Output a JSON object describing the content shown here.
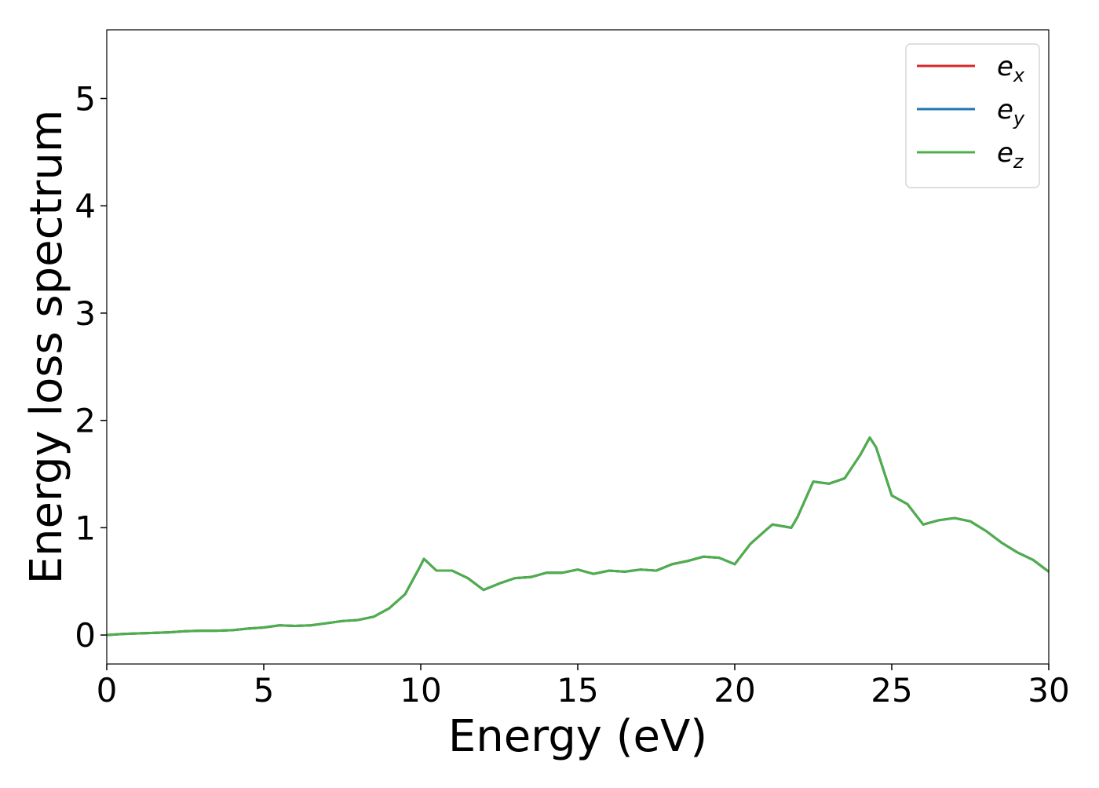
{
  "chart_data": {
    "type": "line",
    "xlabel": "Energy (eV)",
    "ylabel": "Energy loss spectrum",
    "x": [
      0,
      0.5,
      1,
      1.5,
      2,
      2.5,
      3,
      3.5,
      4,
      4.5,
      5,
      5.5,
      6,
      6.5,
      7,
      7.5,
      8,
      8.5,
      9,
      9.5,
      10,
      10.1,
      10.5,
      11,
      11.5,
      12,
      12.5,
      13,
      13.5,
      14,
      14.5,
      15,
      15.5,
      16,
      16.5,
      17,
      17.5,
      18,
      18.5,
      19,
      19.5,
      20,
      20.5,
      21,
      21.2,
      21.8,
      22,
      22.5,
      23,
      23.5,
      24,
      24.3,
      24.5,
      25,
      25.5,
      26,
      26.5,
      27,
      27.5,
      28,
      28.5,
      29,
      29.5,
      30
    ],
    "series": [
      {
        "name": "e_x",
        "color": "#d62728",
        "values": [
          0.0,
          0.01,
          0.015,
          0.02,
          0.025,
          0.035,
          0.04,
          0.04,
          0.045,
          0.06,
          0.07,
          0.09,
          0.085,
          0.09,
          0.11,
          0.13,
          0.14,
          0.17,
          0.25,
          0.38,
          0.65,
          0.71,
          0.6,
          0.6,
          0.53,
          0.42,
          0.48,
          0.53,
          0.54,
          0.58,
          0.58,
          0.61,
          0.57,
          0.6,
          0.59,
          0.61,
          0.6,
          0.66,
          0.69,
          0.73,
          0.72,
          0.66,
          0.85,
          0.98,
          1.03,
          1.0,
          1.1,
          1.43,
          1.41,
          1.46,
          1.68,
          1.84,
          1.75,
          1.3,
          1.22,
          1.03,
          1.07,
          1.09,
          1.06,
          0.97,
          0.86,
          0.77,
          0.7,
          0.59
        ]
      },
      {
        "name": "e_y",
        "color": "#1f77b4",
        "values": [
          0.0,
          0.01,
          0.015,
          0.02,
          0.025,
          0.035,
          0.04,
          0.04,
          0.045,
          0.06,
          0.07,
          0.09,
          0.085,
          0.09,
          0.11,
          0.13,
          0.14,
          0.17,
          0.25,
          0.38,
          0.65,
          0.71,
          0.6,
          0.6,
          0.53,
          0.42,
          0.48,
          0.53,
          0.54,
          0.58,
          0.58,
          0.61,
          0.57,
          0.6,
          0.59,
          0.61,
          0.6,
          0.66,
          0.69,
          0.73,
          0.72,
          0.66,
          0.85,
          0.98,
          1.03,
          1.0,
          1.1,
          1.43,
          1.41,
          1.46,
          1.68,
          1.84,
          1.75,
          1.3,
          1.22,
          1.03,
          1.07,
          1.09,
          1.06,
          0.97,
          0.86,
          0.77,
          0.7,
          0.59
        ]
      },
      {
        "name": "e_z",
        "color": "#4daf4a",
        "values": [
          0.0,
          0.01,
          0.015,
          0.02,
          0.025,
          0.035,
          0.04,
          0.04,
          0.045,
          0.06,
          0.07,
          0.09,
          0.085,
          0.09,
          0.11,
          0.13,
          0.14,
          0.17,
          0.25,
          0.38,
          0.65,
          0.71,
          0.6,
          0.6,
          0.53,
          0.42,
          0.48,
          0.53,
          0.54,
          0.58,
          0.58,
          0.61,
          0.57,
          0.6,
          0.59,
          0.61,
          0.6,
          0.66,
          0.69,
          0.73,
          0.72,
          0.66,
          0.85,
          0.98,
          1.03,
          1.0,
          1.1,
          1.43,
          1.41,
          1.46,
          1.68,
          1.84,
          1.75,
          1.3,
          1.22,
          1.03,
          1.07,
          1.09,
          1.06,
          0.97,
          0.86,
          0.77,
          0.7,
          0.59
        ]
      }
    ],
    "xlim": [
      0,
      30
    ],
    "ylim": [
      -0.27,
      5.64
    ],
    "xticks": [
      0,
      5,
      10,
      15,
      20,
      25,
      30
    ],
    "yticks": [
      0,
      1,
      2,
      3,
      4,
      5
    ],
    "grid": false,
    "legend": "upper right"
  }
}
